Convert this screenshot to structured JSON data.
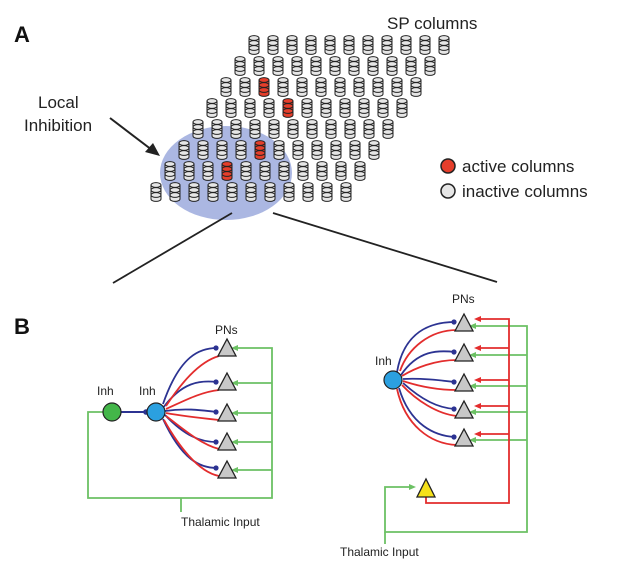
{
  "panel_a": {
    "letter": "A",
    "title": "SP columns",
    "local_label_line1": "Local",
    "local_label_line2": "Inhibition",
    "legend": {
      "active": "active columns",
      "inactive": "inactive columns"
    },
    "colors": {
      "active": "#e53e2b",
      "inactive": "#e6e6e6",
      "inhibition_area": "#8f9fd8"
    },
    "grid": {
      "rows": 8,
      "columns_per_row": 11
    }
  },
  "panel_b": {
    "letter": "B",
    "left": {
      "inh_outer": "Inh",
      "inh_inner": "Inh",
      "pns": "PNs",
      "thalamic": "Thalamic Input"
    },
    "right": {
      "inh": "Inh",
      "pns": "PNs",
      "thalamic": "Thalamic Input"
    },
    "colors": {
      "inh_green": "#43b649",
      "inh_blue": "#2ba0e0",
      "pn_gray": "#c8c8c8",
      "pn_yellow": "#f5e11a",
      "excitatory": "#e32d2d",
      "inhibitory": "#2c3392",
      "thalamic": "#6cc164"
    }
  }
}
